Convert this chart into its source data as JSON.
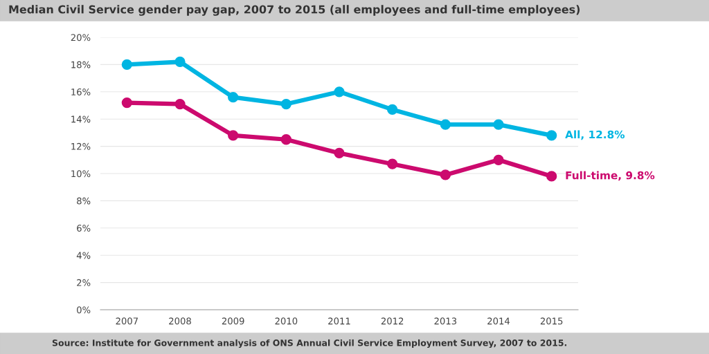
{
  "chart_data": {
    "type": "line",
    "title": "Median Civil Service gender pay gap, 2007 to 2015 (all employees and full-time employees)",
    "categories": [
      "2007",
      "2008",
      "2009",
      "2010",
      "2011",
      "2012",
      "2013",
      "2014",
      "2015"
    ],
    "series": [
      {
        "name": "All, 12.8%",
        "color": "#00b5e2",
        "values": [
          18.0,
          18.2,
          15.6,
          15.1,
          16.0,
          14.7,
          13.6,
          13.6,
          12.8
        ]
      },
      {
        "name": "Full-time, 9.8%",
        "color": "#cc0a6e",
        "values": [
          15.2,
          15.1,
          12.8,
          12.5,
          11.5,
          10.7,
          9.9,
          11.0,
          9.8
        ]
      }
    ],
    "ylim": [
      0,
      20
    ],
    "yticks": [
      {
        "value": 0,
        "label": "0%"
      },
      {
        "value": 2,
        "label": "2%"
      },
      {
        "value": 4,
        "label": "4%"
      },
      {
        "value": 6,
        "label": "6%"
      },
      {
        "value": 8,
        "label": "8%"
      },
      {
        "value": 10,
        "label": "10%"
      },
      {
        "value": 12,
        "label": "12%"
      },
      {
        "value": 14,
        "label": "14%"
      },
      {
        "value": 16,
        "label": "16%"
      },
      {
        "value": 18,
        "label": "18%"
      },
      {
        "value": 20,
        "label": "20%"
      }
    ],
    "grid": "y",
    "marker": "circle",
    "line_style": "solid",
    "legend": false,
    "annotations": [
      "Source: Institute for Government analysis of ONS Annual Civil Service Employment Survey, 2007 to 2015."
    ]
  }
}
